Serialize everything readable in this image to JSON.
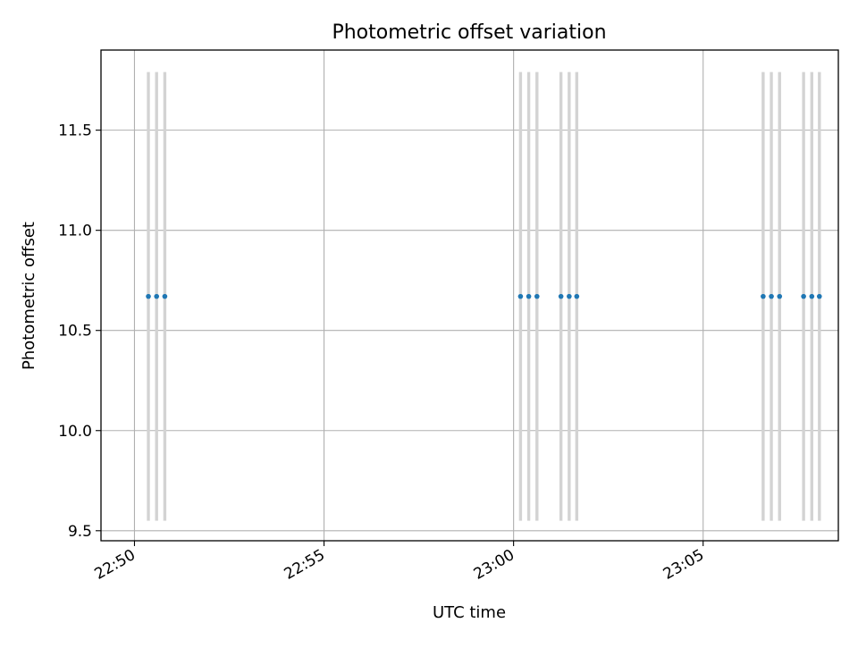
{
  "chart_data": {
    "type": "scatter",
    "title": "Photometric offset variation",
    "xlabel": "UTC time",
    "ylabel": "Photometric offset",
    "x_axis_type": "time",
    "xlim": [
      "22:49:07",
      "23:08:34"
    ],
    "ylim": [
      9.45,
      11.9
    ],
    "x_ticks": [
      "22:50",
      "22:55",
      "23:00",
      "23:05"
    ],
    "y_ticks": [
      9.5,
      10.0,
      10.5,
      11.0,
      11.5
    ],
    "grid": true,
    "errorbar_color": "#d3d3d3",
    "point_color": "#1f77b4",
    "series": [
      {
        "points": [
          {
            "x": "22:50:22",
            "y": 10.67,
            "yerr_low": 9.55,
            "yerr_high": 11.79
          },
          {
            "x": "22:50:35",
            "y": 10.67,
            "yerr_low": 9.55,
            "yerr_high": 11.79
          },
          {
            "x": "22:50:48",
            "y": 10.67,
            "yerr_low": 9.55,
            "yerr_high": 11.79
          },
          {
            "x": "23:00:11",
            "y": 10.67,
            "yerr_low": 9.55,
            "yerr_high": 11.79
          },
          {
            "x": "23:00:24",
            "y": 10.67,
            "yerr_low": 9.55,
            "yerr_high": 11.79
          },
          {
            "x": "23:00:37",
            "y": 10.67,
            "yerr_low": 9.55,
            "yerr_high": 11.79
          },
          {
            "x": "23:01:15",
            "y": 10.67,
            "yerr_low": 9.55,
            "yerr_high": 11.79
          },
          {
            "x": "23:01:28",
            "y": 10.67,
            "yerr_low": 9.55,
            "yerr_high": 11.79
          },
          {
            "x": "23:01:40",
            "y": 10.67,
            "yerr_low": 9.55,
            "yerr_high": 11.79
          },
          {
            "x": "23:06:35",
            "y": 10.67,
            "yerr_low": 9.55,
            "yerr_high": 11.79
          },
          {
            "x": "23:06:48",
            "y": 10.67,
            "yerr_low": 9.55,
            "yerr_high": 11.79
          },
          {
            "x": "23:07:01",
            "y": 10.67,
            "yerr_low": 9.55,
            "yerr_high": 11.79
          },
          {
            "x": "23:07:39",
            "y": 10.67,
            "yerr_low": 9.55,
            "yerr_high": 11.79
          },
          {
            "x": "23:07:52",
            "y": 10.67,
            "yerr_low": 9.55,
            "yerr_high": 11.79
          },
          {
            "x": "23:08:04",
            "y": 10.67,
            "yerr_low": 9.55,
            "yerr_high": 11.79
          }
        ]
      }
    ]
  }
}
